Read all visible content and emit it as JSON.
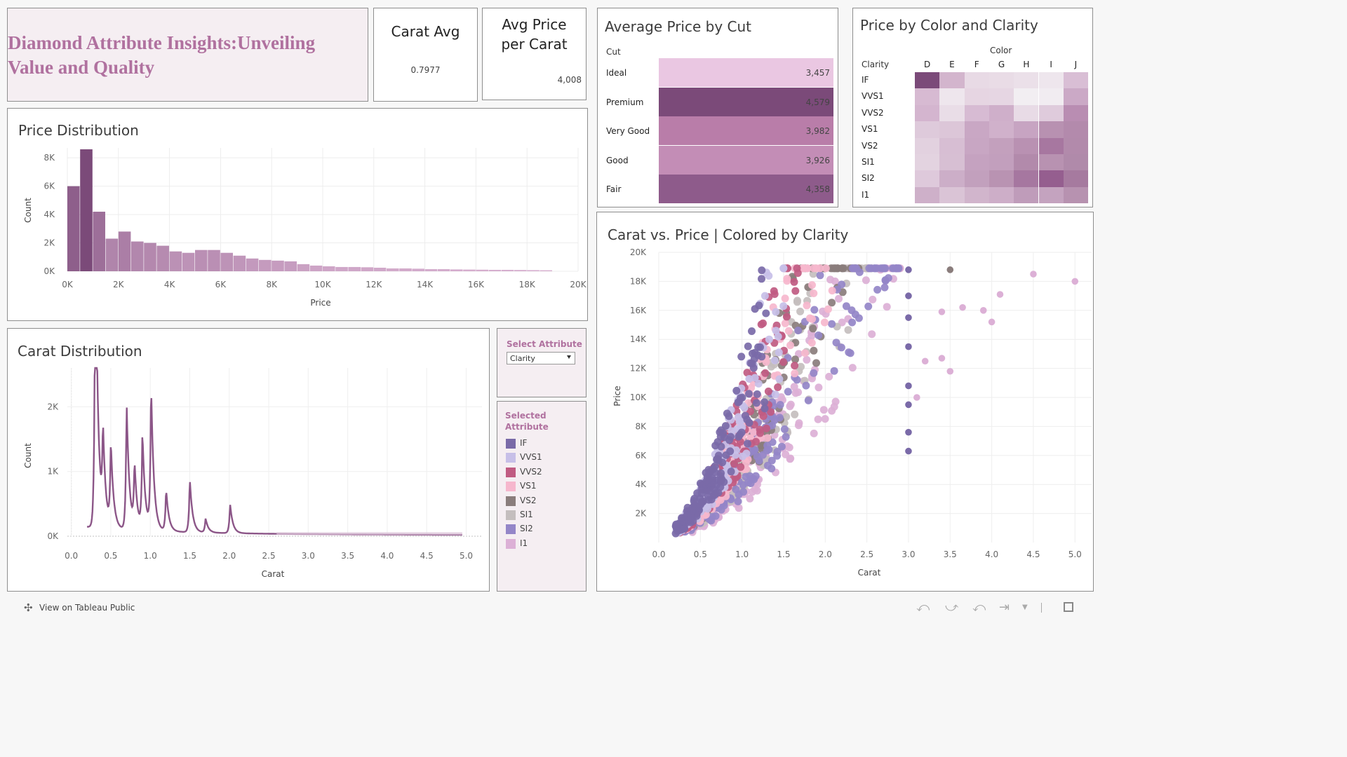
{
  "colors": {
    "brand_pink": "#b0719f",
    "title_bg": "#f5eef2",
    "legend_bg": "#f5eef2",
    "bar_dark": "#7b4a79",
    "bar_light": "#dcb5d4"
  },
  "header": {
    "title": "Diamond Attribute Insights:Unveiling Value and Quality"
  },
  "kpis": {
    "carat_avg": {
      "label": "Carat Avg",
      "value": "0.7977"
    },
    "avg_price_per_carat": {
      "label": "Avg Price per Carat",
      "value": "4,008"
    }
  },
  "price_by_cut": {
    "title": "Average Price by Cut",
    "column_header": "Cut",
    "rows": [
      {
        "cut": "Ideal",
        "value": "3,457",
        "color": "#eac7e2"
      },
      {
        "cut": "Premium",
        "value": "4,579",
        "color": "#7b4a79"
      },
      {
        "cut": "Very Good",
        "value": "3,982",
        "color": "#b97da9"
      },
      {
        "cut": "Good",
        "value": "3,926",
        "color": "#c38db6"
      },
      {
        "cut": "Fair",
        "value": "4,358",
        "color": "#8e5b8b"
      }
    ]
  },
  "color_clarity": {
    "title": "Price by Color and Clarity",
    "col_header": "Color",
    "row_header": "Clarity",
    "colors": [
      "D",
      "E",
      "F",
      "G",
      "H",
      "I",
      "J"
    ],
    "clarities": [
      "IF",
      "VVS1",
      "VVS2",
      "VS1",
      "VS2",
      "SI1",
      "SI2",
      "I1"
    ],
    "cells": [
      [
        "#7b4a79",
        "#d3b5cd",
        "#e8dae5",
        "#e9dce6",
        "#ebe0e9",
        "#eee6ed",
        "#d9bed5"
      ],
      [
        "#d7bad2",
        "#eee6ed",
        "#e6d5e2",
        "#e6d6e3",
        "#f2eef2",
        "#f1ecf1",
        "#cba9c6"
      ],
      [
        "#d4b5cf",
        "#e9dde7",
        "#d7bbd3",
        "#cfafca",
        "#e8dbe6",
        "#dfcbdc",
        "#b98db2"
      ],
      [
        "#decadb",
        "#dcc6d8",
        "#c9a7c4",
        "#d0b1cb",
        "#c7a4c2",
        "#b891b1",
        "#b38aac"
      ],
      [
        "#e2d1df",
        "#d7bed3",
        "#c8a6c3",
        "#c3a0bd",
        "#b991b2",
        "#a777a0",
        "#b28aab"
      ],
      [
        "#e3d3e0",
        "#d7bfd3",
        "#c5a2c0",
        "#c29fbd",
        "#b28aab",
        "#b892b1",
        "#b08aaa"
      ],
      [
        "#dec9db",
        "#ccaec8",
        "#c2a0bd",
        "#b993b2",
        "#a677a0",
        "#955e8f",
        "#a67a9f"
      ],
      [
        "#ceb0c9",
        "#dac4d6",
        "#d1b5cc",
        "#cdaec8",
        "#bf9cba",
        "#c4a3bf",
        "#b792b0"
      ]
    ]
  },
  "price_distribution": {
    "title": "Price Distribution",
    "xlabel": "Price",
    "ylabel": "Count"
  },
  "carat_distribution": {
    "title": "Carat Distribution",
    "xlabel": "Carat",
    "ylabel": "Count"
  },
  "attribute_selector": {
    "label": "Select Attribute",
    "value": "Clarity"
  },
  "legend": {
    "title": "Selected Attribute",
    "items": [
      {
        "label": "IF",
        "color": "#7a6aa8"
      },
      {
        "label": "VVS1",
        "color": "#c7bfe8"
      },
      {
        "label": "VVS2",
        "color": "#c05b82"
      },
      {
        "label": "VS1",
        "color": "#f6b7cd"
      },
      {
        "label": "VS2",
        "color": "#8a7d7c"
      },
      {
        "label": "SI1",
        "color": "#c4bebe"
      },
      {
        "label": "SI2",
        "color": "#9486c8"
      },
      {
        "label": "I1",
        "color": "#dcb0d6"
      }
    ]
  },
  "scatter": {
    "title": "Carat vs. Price | Colored by Clarity",
    "xlabel": "Carat",
    "ylabel": "Price"
  },
  "footer": {
    "tableau_link": "View on Tableau Public"
  },
  "chart_data": [
    {
      "type": "bar",
      "title": "Price Distribution",
      "xlabel": "Price",
      "ylabel": "Count",
      "x_ticks": [
        "0K",
        "2K",
        "4K",
        "6K",
        "8K",
        "10K",
        "12K",
        "14K",
        "16K",
        "18K",
        "20K"
      ],
      "y_ticks": [
        "0K",
        "2K",
        "4K",
        "6K",
        "8K"
      ],
      "xlim": [
        0,
        20000
      ],
      "ylim": [
        0,
        8700
      ],
      "bin_width": 500,
      "bin_starts": [
        0,
        500,
        1000,
        1500,
        2000,
        2500,
        3000,
        3500,
        4000,
        4500,
        5000,
        5500,
        6000,
        6500,
        7000,
        7500,
        8000,
        8500,
        9000,
        9500,
        10000,
        10500,
        11000,
        11500,
        12000,
        12500,
        13000,
        13500,
        14000,
        14500,
        15000,
        15500,
        16000,
        16500,
        17000,
        17500,
        18000,
        18500
      ],
      "values": [
        6000,
        8600,
        4200,
        2300,
        2800,
        2100,
        2000,
        1800,
        1400,
        1300,
        1500,
        1500,
        1300,
        1100,
        900,
        800,
        750,
        700,
        500,
        400,
        350,
        300,
        300,
        280,
        250,
        200,
        200,
        180,
        150,
        150,
        130,
        120,
        110,
        100,
        100,
        90,
        80,
        70
      ]
    },
    {
      "type": "line",
      "title": "Carat Distribution",
      "xlabel": "Carat",
      "ylabel": "Count",
      "x_ticks": [
        "0.0",
        "0.5",
        "1.0",
        "1.5",
        "2.0",
        "2.5",
        "3.0",
        "3.5",
        "4.0",
        "4.5",
        "5.0"
      ],
      "y_ticks": [
        "0K",
        "1K",
        "2K"
      ],
      "xlim": [
        -0.05,
        5.2
      ],
      "ylim": [
        0,
        2600
      ],
      "peaks": [
        {
          "x": 0.3,
          "y": 2600
        },
        {
          "x": 0.31,
          "y": 2200
        },
        {
          "x": 0.4,
          "y": 1400
        },
        {
          "x": 0.5,
          "y": 1300
        },
        {
          "x": 0.7,
          "y": 2000
        },
        {
          "x": 0.8,
          "y": 1000
        },
        {
          "x": 0.9,
          "y": 1500
        },
        {
          "x": 1.01,
          "y": 2250
        },
        {
          "x": 1.2,
          "y": 660
        },
        {
          "x": 1.5,
          "y": 840
        },
        {
          "x": 1.7,
          "y": 220
        },
        {
          "x": 2.01,
          "y": 460
        }
      ]
    },
    {
      "type": "scatter",
      "title": "Carat vs. Price | Colored by Clarity",
      "xlabel": "Carat",
      "ylabel": "Price",
      "x_ticks": [
        "0.0",
        "0.5",
        "1.0",
        "1.5",
        "2.0",
        "2.5",
        "3.0",
        "3.5",
        "4.0",
        "4.5",
        "5.0"
      ],
      "y_ticks": [
        "2K",
        "4K",
        "6K",
        "8K",
        "10K",
        "12K",
        "14K",
        "16K",
        "18K",
        "20K"
      ],
      "xlim": [
        0,
        5.2
      ],
      "ylim": [
        0,
        20000
      ],
      "series": [
        {
          "name": "IF",
          "color": "#7a6aa8"
        },
        {
          "name": "VVS1",
          "color": "#c7bfe8"
        },
        {
          "name": "VVS2",
          "color": "#c05b82"
        },
        {
          "name": "VS1",
          "color": "#f6b7cd"
        },
        {
          "name": "VS2",
          "color": "#8a7d7c"
        },
        {
          "name": "SI1",
          "color": "#c4bebe"
        },
        {
          "name": "SI2",
          "color": "#9486c8"
        },
        {
          "name": "I1",
          "color": "#dcb0d6"
        }
      ],
      "outliers": [
        {
          "x": 3.5,
          "y": 18800,
          "series": "VS2"
        },
        {
          "x": 4.5,
          "y": 18500,
          "series": "I1"
        },
        {
          "x": 5.0,
          "y": 18000,
          "series": "I1"
        },
        {
          "x": 4.1,
          "y": 17100,
          "series": "I1"
        },
        {
          "x": 3.9,
          "y": 16000,
          "series": "I1"
        },
        {
          "x": 3.65,
          "y": 16200,
          "series": "I1"
        },
        {
          "x": 3.4,
          "y": 15900,
          "series": "I1"
        },
        {
          "x": 4.0,
          "y": 15200,
          "series": "I1"
        },
        {
          "x": 3.0,
          "y": 18800,
          "series": "IF"
        },
        {
          "x": 3.0,
          "y": 17000,
          "series": "IF"
        },
        {
          "x": 3.0,
          "y": 15500,
          "series": "IF"
        },
        {
          "x": 3.0,
          "y": 13500,
          "series": "IF"
        },
        {
          "x": 3.0,
          "y": 10800,
          "series": "IF"
        },
        {
          "x": 3.0,
          "y": 9500,
          "series": "IF"
        },
        {
          "x": 3.0,
          "y": 7600,
          "series": "IF"
        },
        {
          "x": 3.0,
          "y": 6300,
          "series": "IF"
        },
        {
          "x": 3.1,
          "y": 10000,
          "series": "I1"
        },
        {
          "x": 3.2,
          "y": 12500,
          "series": "I1"
        },
        {
          "x": 3.4,
          "y": 12700,
          "series": "I1"
        },
        {
          "x": 3.5,
          "y": 11800,
          "series": "I1"
        }
      ]
    }
  ]
}
